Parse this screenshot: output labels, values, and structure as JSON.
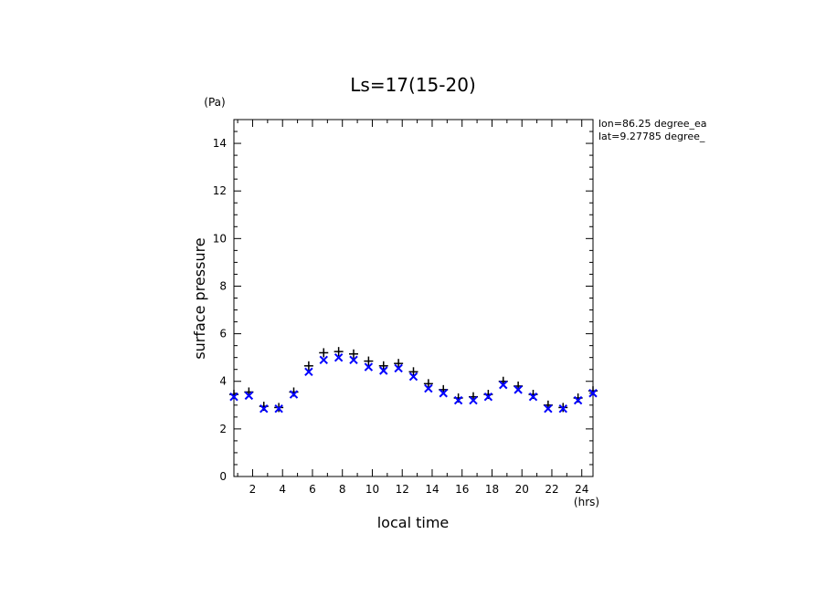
{
  "chart_data": {
    "type": "scatter",
    "title": "Ls=17(15-20)",
    "xlabel": "local time",
    "ylabel": "surface pressure",
    "x_unit": "(hrs)",
    "y_unit": "(Pa)",
    "annotations": [
      "lon=86.25 degree_ea",
      "lat=9.27785 degree_"
    ],
    "xlim": [
      0.75,
      24.75
    ],
    "ylim": [
      0,
      15
    ],
    "x_ticks": [
      "2",
      "4",
      "6",
      "8",
      "10",
      "12",
      "14",
      "16",
      "18",
      "20",
      "22",
      "24"
    ],
    "y_ticks": [
      "0",
      "2",
      "4",
      "6",
      "8",
      "10",
      "12",
      "14"
    ],
    "x": [
      0.75,
      1.75,
      2.75,
      3.75,
      4.75,
      5.75,
      6.75,
      7.75,
      8.75,
      9.75,
      10.75,
      11.75,
      12.75,
      13.75,
      14.75,
      15.75,
      16.75,
      17.75,
      18.75,
      19.75,
      20.75,
      21.75,
      22.75,
      23.75,
      24.75
    ],
    "series": [
      {
        "marker": "plus",
        "color": "#000000",
        "values": [
          3.45,
          3.55,
          2.95,
          2.9,
          3.55,
          4.65,
          5.2,
          5.25,
          5.15,
          4.85,
          4.65,
          4.75,
          4.4,
          3.9,
          3.65,
          3.3,
          3.35,
          3.45,
          4.0,
          3.8,
          3.45,
          3.0,
          2.9,
          3.3,
          3.6
        ]
      },
      {
        "marker": "x",
        "color": "#0000ff",
        "values": [
          3.35,
          3.4,
          2.85,
          2.85,
          3.45,
          4.4,
          4.9,
          5.0,
          4.9,
          4.6,
          4.45,
          4.55,
          4.2,
          3.7,
          3.5,
          3.2,
          3.2,
          3.35,
          3.85,
          3.65,
          3.35,
          2.85,
          2.85,
          3.2,
          3.5
        ]
      }
    ]
  }
}
